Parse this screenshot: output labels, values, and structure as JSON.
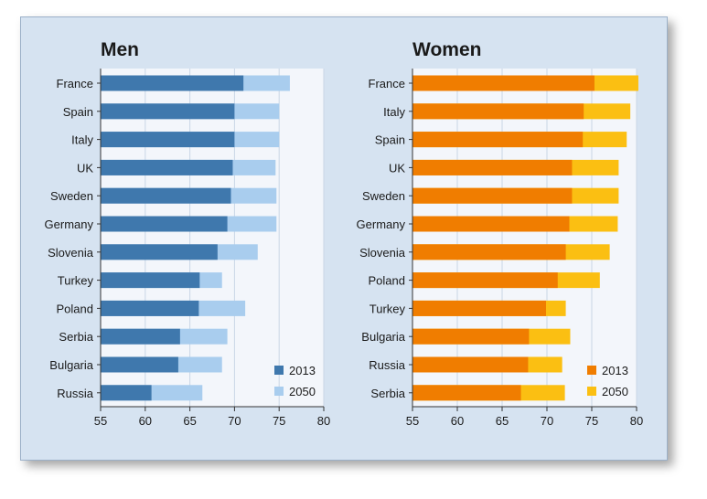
{
  "chart_data": [
    {
      "type": "bar",
      "orientation": "horizontal",
      "stacked_overlay": true,
      "title": "Men",
      "categories": [
        "France",
        "Spain",
        "Italy",
        "UK",
        "Sweden",
        "Germany",
        "Slovenia",
        "Turkey",
        "Poland",
        "Serbia",
        "Bulgaria",
        "Russia"
      ],
      "series": [
        {
          "name": "2013",
          "color": "#3f78ad",
          "values": [
            71.0,
            70.0,
            70.0,
            69.8,
            69.6,
            69.2,
            68.1,
            66.1,
            66.0,
            63.9,
            63.7,
            60.7
          ]
        },
        {
          "name": "2050",
          "color": "#a9cdee",
          "values": [
            76.2,
            75.0,
            75.0,
            74.6,
            74.7,
            74.7,
            72.6,
            68.6,
            71.2,
            69.2,
            68.6,
            66.4
          ]
        }
      ],
      "xlim": [
        55,
        80
      ],
      "xticks": [
        "55",
        "60",
        "65",
        "70",
        "75",
        "80"
      ],
      "legend_position": "bottom-right"
    },
    {
      "type": "bar",
      "orientation": "horizontal",
      "stacked_overlay": true,
      "title": "Women",
      "categories": [
        "France",
        "Italy",
        "Spain",
        "UK",
        "Sweden",
        "Germany",
        "Slovenia",
        "Poland",
        "Turkey",
        "Bulgaria",
        "Russia",
        "Serbia"
      ],
      "series": [
        {
          "name": "2013",
          "color": "#f07d00",
          "values": [
            75.3,
            74.1,
            74.0,
            72.8,
            72.8,
            72.5,
            72.1,
            71.2,
            69.9,
            68.0,
            67.9,
            67.1
          ]
        },
        {
          "name": "2050",
          "color": "#fbbf12",
          "values": [
            80.2,
            79.3,
            78.9,
            78.0,
            78.0,
            77.9,
            77.0,
            75.9,
            72.1,
            72.6,
            71.7,
            72.0
          ]
        }
      ],
      "xlim": [
        55,
        80
      ],
      "xticks": [
        "55",
        "60",
        "65",
        "70",
        "75",
        "80"
      ],
      "legend_position": "bottom-right"
    }
  ]
}
